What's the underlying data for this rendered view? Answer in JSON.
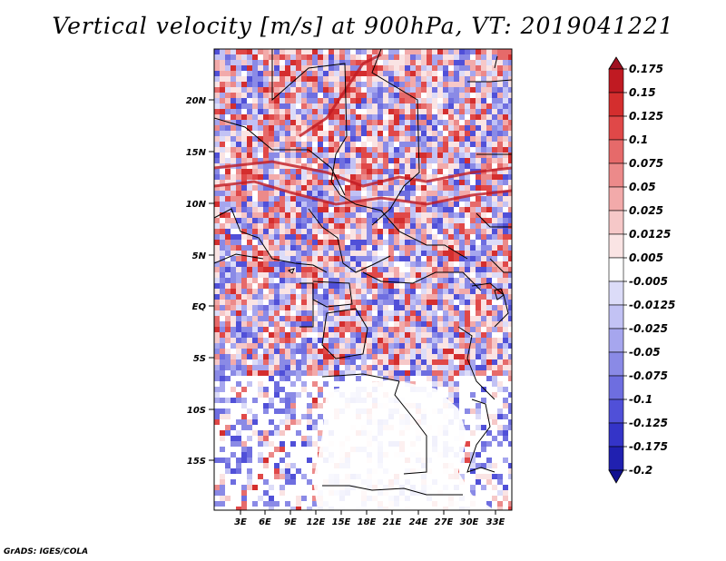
{
  "title": "Vertical velocity [m/s] at 900hPa, VT: 2019041221",
  "footer": "GrADS: IGES/COLA",
  "axes": {
    "lat_ticks": [
      "20N",
      "15N",
      "10N",
      "5N",
      "EQ",
      "5S",
      "10S",
      "15S"
    ],
    "lon_ticks": [
      "3E",
      "6E",
      "9E",
      "12E",
      "15E",
      "18E",
      "21E",
      "24E",
      "27E",
      "30E",
      "33E"
    ]
  },
  "colorbar": {
    "levels": [
      "0.175",
      "0.15",
      "0.125",
      "0.1",
      "0.075",
      "0.05",
      "0.025",
      "0.0125",
      "0.005",
      "-0.005",
      "-0.0125",
      "-0.025",
      "-0.05",
      "-0.075",
      "-0.1",
      "-0.125",
      "-0.175",
      "-0.2"
    ],
    "colors": [
      "#a01020",
      "#c01a22",
      "#d42e2e",
      "#e04848",
      "#e66a6a",
      "#ec8a8a",
      "#f2aaaa",
      "#f6c8c8",
      "#fae4e4",
      "#ffffff",
      "#dcdcf8",
      "#c2c2f4",
      "#a6a6ee",
      "#8a8ae6",
      "#6e6ee0",
      "#5050d8",
      "#3434c8",
      "#2020b0",
      "#101090"
    ]
  },
  "colors": {
    "positive": "#e04848",
    "negative": "#6e6ee0",
    "neutral": "#ffffff",
    "coastline": "#000000"
  }
}
